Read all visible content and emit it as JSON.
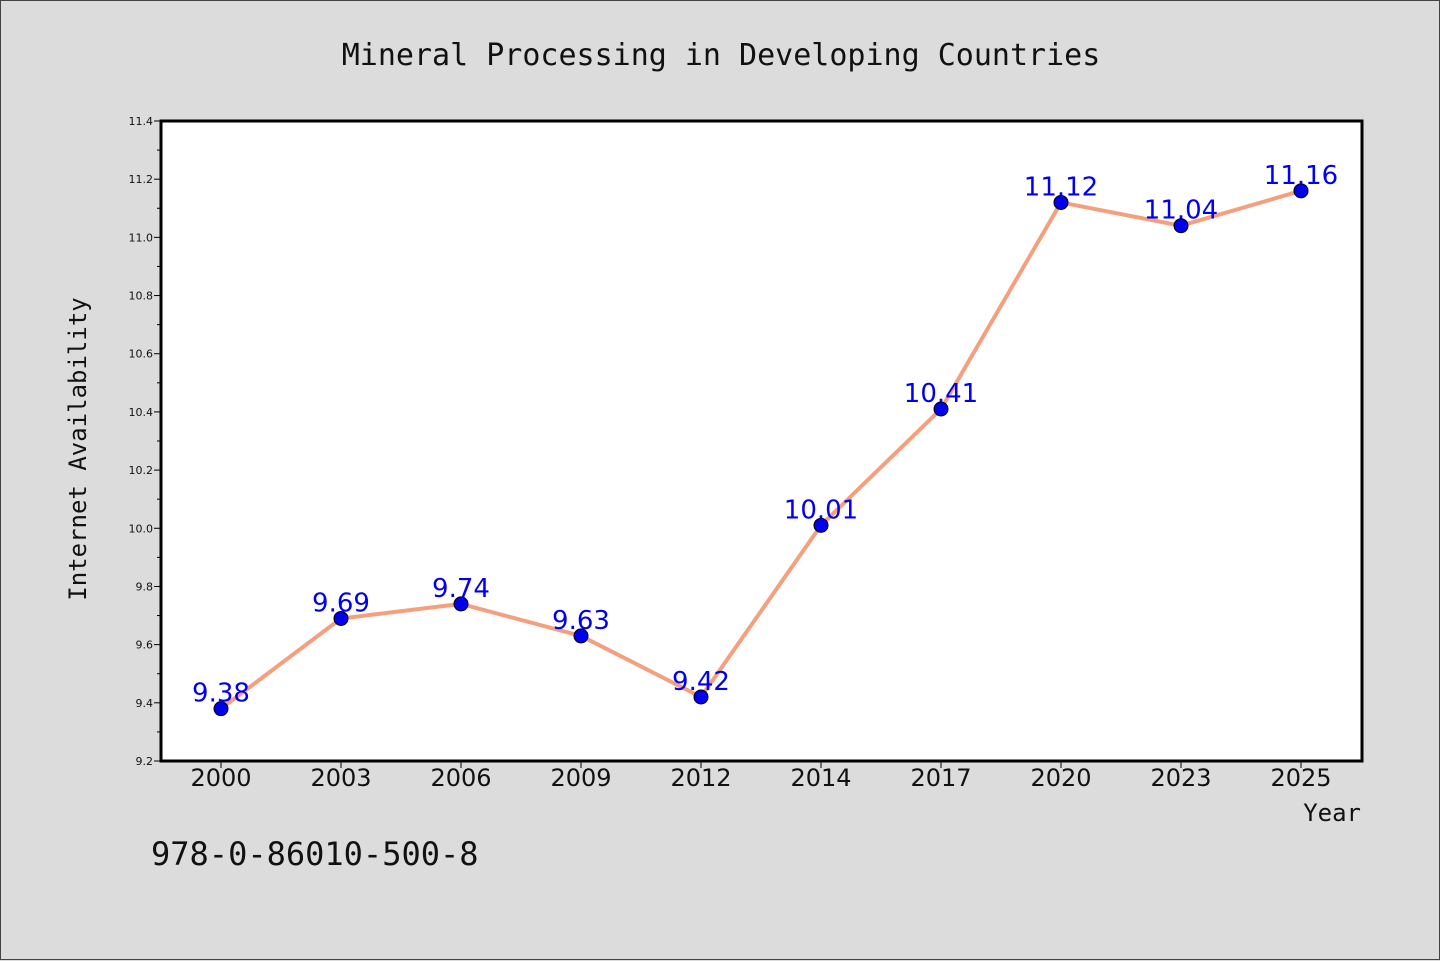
{
  "chart_data": {
    "type": "line",
    "title": "Mineral Processing in Developing Countries",
    "xlabel": "Year",
    "ylabel": "Internet Availability",
    "categories": [
      "2000",
      "2003",
      "2006",
      "2009",
      "2012",
      "2014",
      "2017",
      "2020",
      "2023",
      "2025"
    ],
    "series": [
      {
        "values": [
          9.38,
          9.69,
          9.74,
          9.63,
          9.42,
          10.01,
          10.41,
          11.12,
          11.04,
          11.16
        ],
        "labels": [
          "9.38",
          "9.69",
          "9.74",
          "9.63",
          "9.42",
          "10.01",
          "10.41",
          "11.12",
          "11.04",
          "11.16"
        ],
        "line_color": "#f4a07f",
        "marker_color": "#0000ee"
      }
    ],
    "ylim": [
      9.2,
      11.4
    ],
    "yticks": [
      "9.2",
      "9.4",
      "9.6",
      "9.8",
      "10.0",
      "10.2",
      "10.4",
      "10.6",
      "10.8",
      "11.0",
      "11.2",
      "11.4"
    ],
    "grid": false,
    "legend": "none"
  },
  "footer": {
    "isbn": "978-0-86010-500-8"
  }
}
